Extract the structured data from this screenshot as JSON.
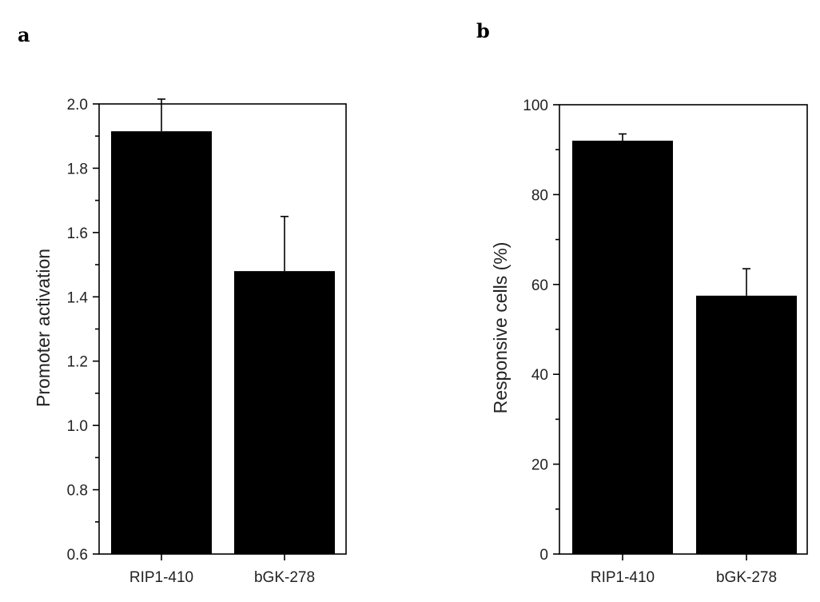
{
  "chart_data": [
    {
      "panel": "a",
      "type": "bar",
      "categories": [
        "RIP1-410",
        "bGK-278"
      ],
      "values": [
        1.915,
        1.48
      ],
      "errors": [
        0.1,
        0.17
      ],
      "ylabel": "Promoter activation",
      "ylim": [
        0.6,
        2.0
      ],
      "yticks": [
        "0.6",
        "0.8",
        "1.0",
        "1.2",
        "1.4",
        "1.6",
        "1.8",
        "2.0"
      ],
      "bar_color": "#000000"
    },
    {
      "panel": "b",
      "type": "bar",
      "categories": [
        "RIP1-410",
        "bGK-278"
      ],
      "values": [
        92,
        57.5
      ],
      "errors": [
        1.5,
        6
      ],
      "ylabel": "Responsive cells (%)",
      "ylim": [
        0,
        100
      ],
      "yticks": [
        "0",
        "20",
        "40",
        "60",
        "80",
        "100"
      ],
      "bar_color": "#000000"
    }
  ]
}
